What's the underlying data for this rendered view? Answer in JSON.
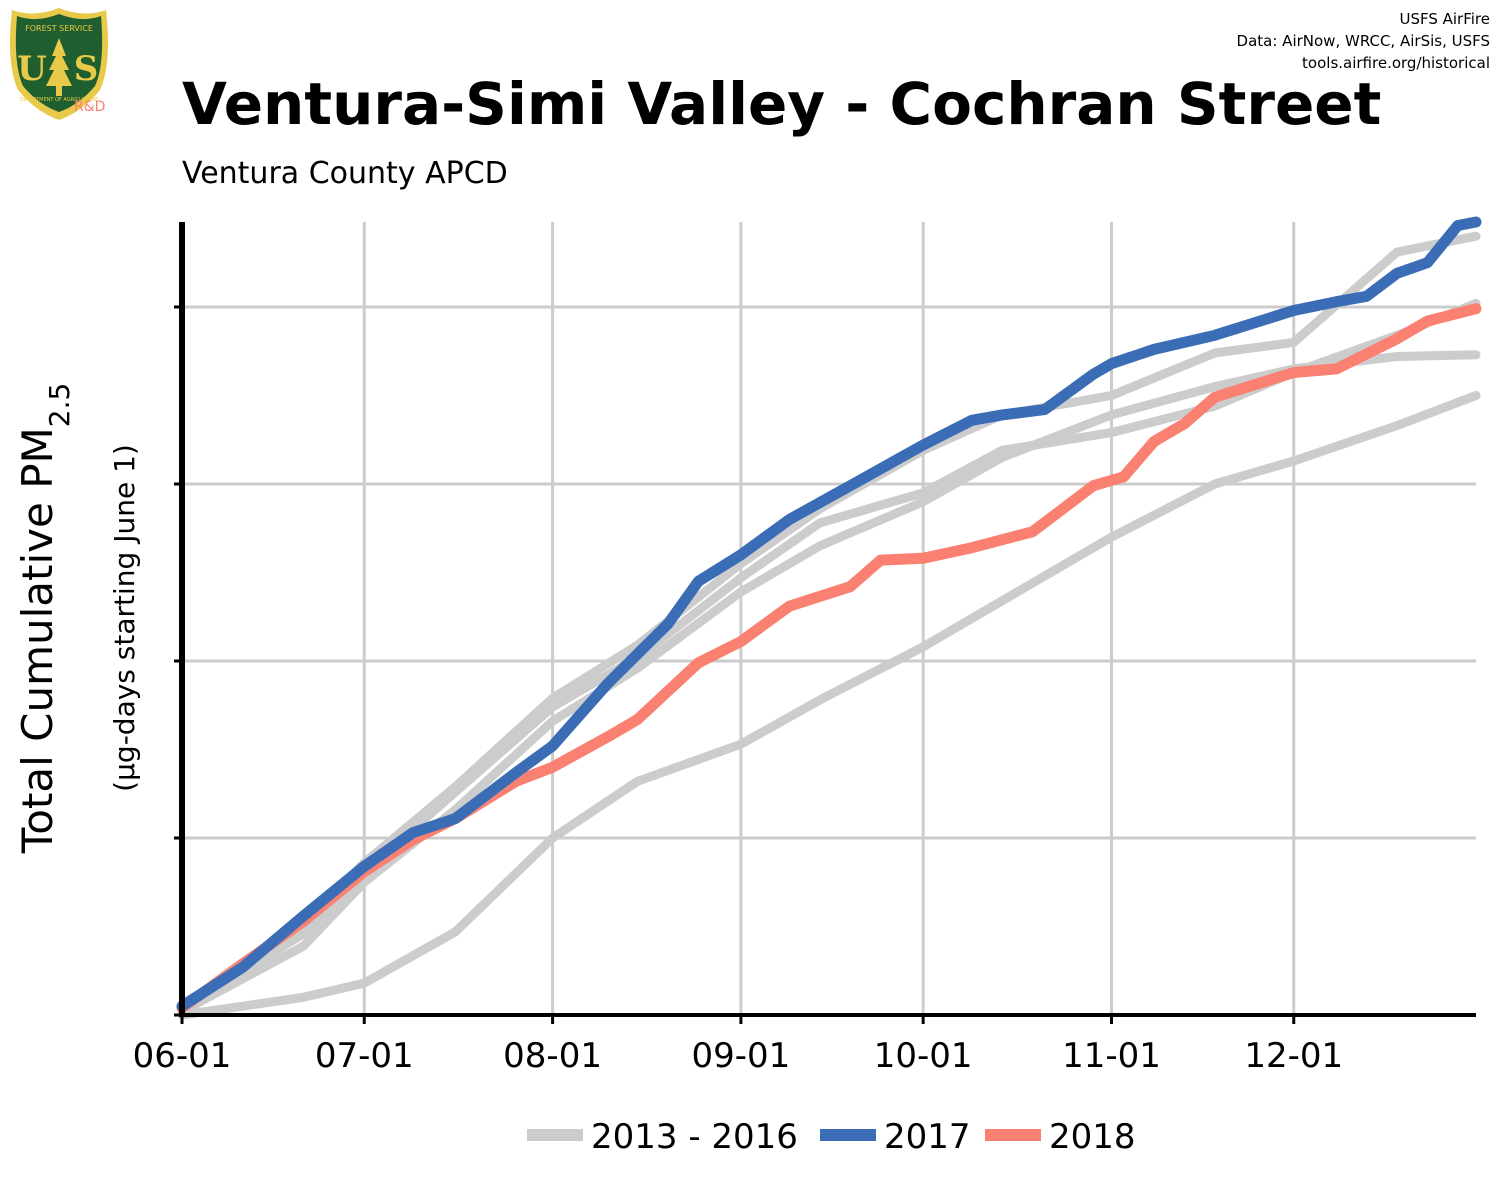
{
  "header": {
    "title": "Ventura-Simi Valley - Cochran Street",
    "subtitle": "Ventura County  APCD",
    "credits": [
      "USFS AirFire",
      "Data: AirNow, WRCC, AirSis, USFS",
      "tools.airfire.org/historical"
    ]
  },
  "logo": {
    "top_text": "FOREST SERVICE",
    "letters_left": "U",
    "letters_right": "S",
    "bottom_text": "DEPARTMENT OF AGRICULTURE",
    "rd_text": "R&D",
    "shield_color": "#1f5e2e",
    "rim_color": "#e8c94a"
  },
  "chart_data": {
    "type": "line",
    "title": "Ventura-Simi Valley - Cochran Street",
    "subtitle": "Ventura County  APCD",
    "ylabel_main": "Total Cumulative PM",
    "ylabel_sub": "2.5",
    "ylabel_units": "(µg-days starting June 1)",
    "x_tick_labels": [
      "06-01",
      "07-01",
      "08-01",
      "09-01",
      "10-01",
      "11-01",
      "12-01"
    ],
    "x_tick_days": [
      0,
      30,
      61,
      92,
      122,
      153,
      183
    ],
    "xlim": [
      0,
      213
    ],
    "ylim": [
      0,
      4480
    ],
    "y_ticks": [
      0,
      1000,
      2000,
      3000,
      4000
    ],
    "y_tick_labels_shown": false,
    "grid": true,
    "legend_position": "bottom",
    "colors": {
      "historical": "#cccccc",
      "y2017": "#3a6db5",
      "y2018": "#fa8072"
    },
    "legend": [
      {
        "label": "2013 - 2016",
        "color": "#cccccc"
      },
      {
        "label": "2017",
        "color": "#3a6db5"
      },
      {
        "label": "2018",
        "color": "#fa8072"
      }
    ],
    "series": [
      {
        "name": "2013 - 2016",
        "group": "historical",
        "x": [
          0,
          20,
          30,
          45,
          61,
          75,
          92,
          105,
          122,
          135,
          153,
          170,
          183,
          200,
          213
        ],
        "y": [
          50,
          510,
          860,
          1290,
          1790,
          2090,
          2550,
          2860,
          3190,
          3390,
          3500,
          3740,
          3800,
          4310,
          4400
        ]
      },
      {
        "name": "2013 - 2016",
        "group": "historical",
        "x": [
          0,
          20,
          30,
          45,
          61,
          75,
          92,
          105,
          122,
          135,
          153,
          170,
          183,
          200,
          213
        ],
        "y": [
          30,
          460,
          810,
          1260,
          1740,
          2020,
          2470,
          2780,
          2950,
          3190,
          3290,
          3440,
          3630,
          3840,
          4020
        ]
      },
      {
        "name": "2013 - 2016",
        "group": "historical",
        "x": [
          0,
          20,
          30,
          45,
          61,
          75,
          92,
          105,
          122,
          135,
          153,
          170,
          183,
          200,
          213
        ],
        "y": [
          20,
          390,
          750,
          1160,
          1660,
          1960,
          2390,
          2650,
          2900,
          3150,
          3390,
          3550,
          3650,
          3720,
          3730
        ]
      },
      {
        "name": "2013 - 2016",
        "group": "historical",
        "x": [
          0,
          20,
          30,
          45,
          61,
          75,
          92,
          105,
          122,
          135,
          153,
          170,
          183,
          200,
          213
        ],
        "y": [
          0,
          100,
          180,
          470,
          1000,
          1320,
          1530,
          1780,
          2080,
          2340,
          2700,
          3000,
          3130,
          3330,
          3500
        ]
      },
      {
        "name": "2017",
        "group": "y2017",
        "x": [
          0,
          10,
          20,
          30,
          38,
          45,
          55,
          61,
          70,
          80,
          85,
          92,
          100,
          110,
          122,
          130,
          135,
          142,
          150,
          153,
          160,
          170,
          183,
          190,
          195,
          200,
          205,
          210,
          213
        ],
        "y": [
          50,
          270,
          560,
          840,
          1030,
          1110,
          1370,
          1520,
          1870,
          2210,
          2450,
          2600,
          2800,
          2990,
          3220,
          3360,
          3390,
          3420,
          3620,
          3680,
          3760,
          3840,
          3980,
          4030,
          4060,
          4190,
          4250,
          4460,
          4480
        ]
      },
      {
        "name": "2018",
        "group": "y2018",
        "x": [
          0,
          10,
          20,
          30,
          38,
          45,
          55,
          61,
          70,
          75,
          85,
          92,
          100,
          110,
          115,
          122,
          130,
          140,
          150,
          155,
          160,
          165,
          170,
          183,
          190,
          200,
          205,
          213
        ],
        "y": [
          40,
          290,
          530,
          810,
          990,
          1110,
          1320,
          1400,
          1570,
          1670,
          1990,
          2110,
          2310,
          2420,
          2570,
          2580,
          2640,
          2730,
          2990,
          3040,
          3240,
          3340,
          3490,
          3630,
          3650,
          3820,
          3920,
          3990
        ]
      }
    ]
  }
}
